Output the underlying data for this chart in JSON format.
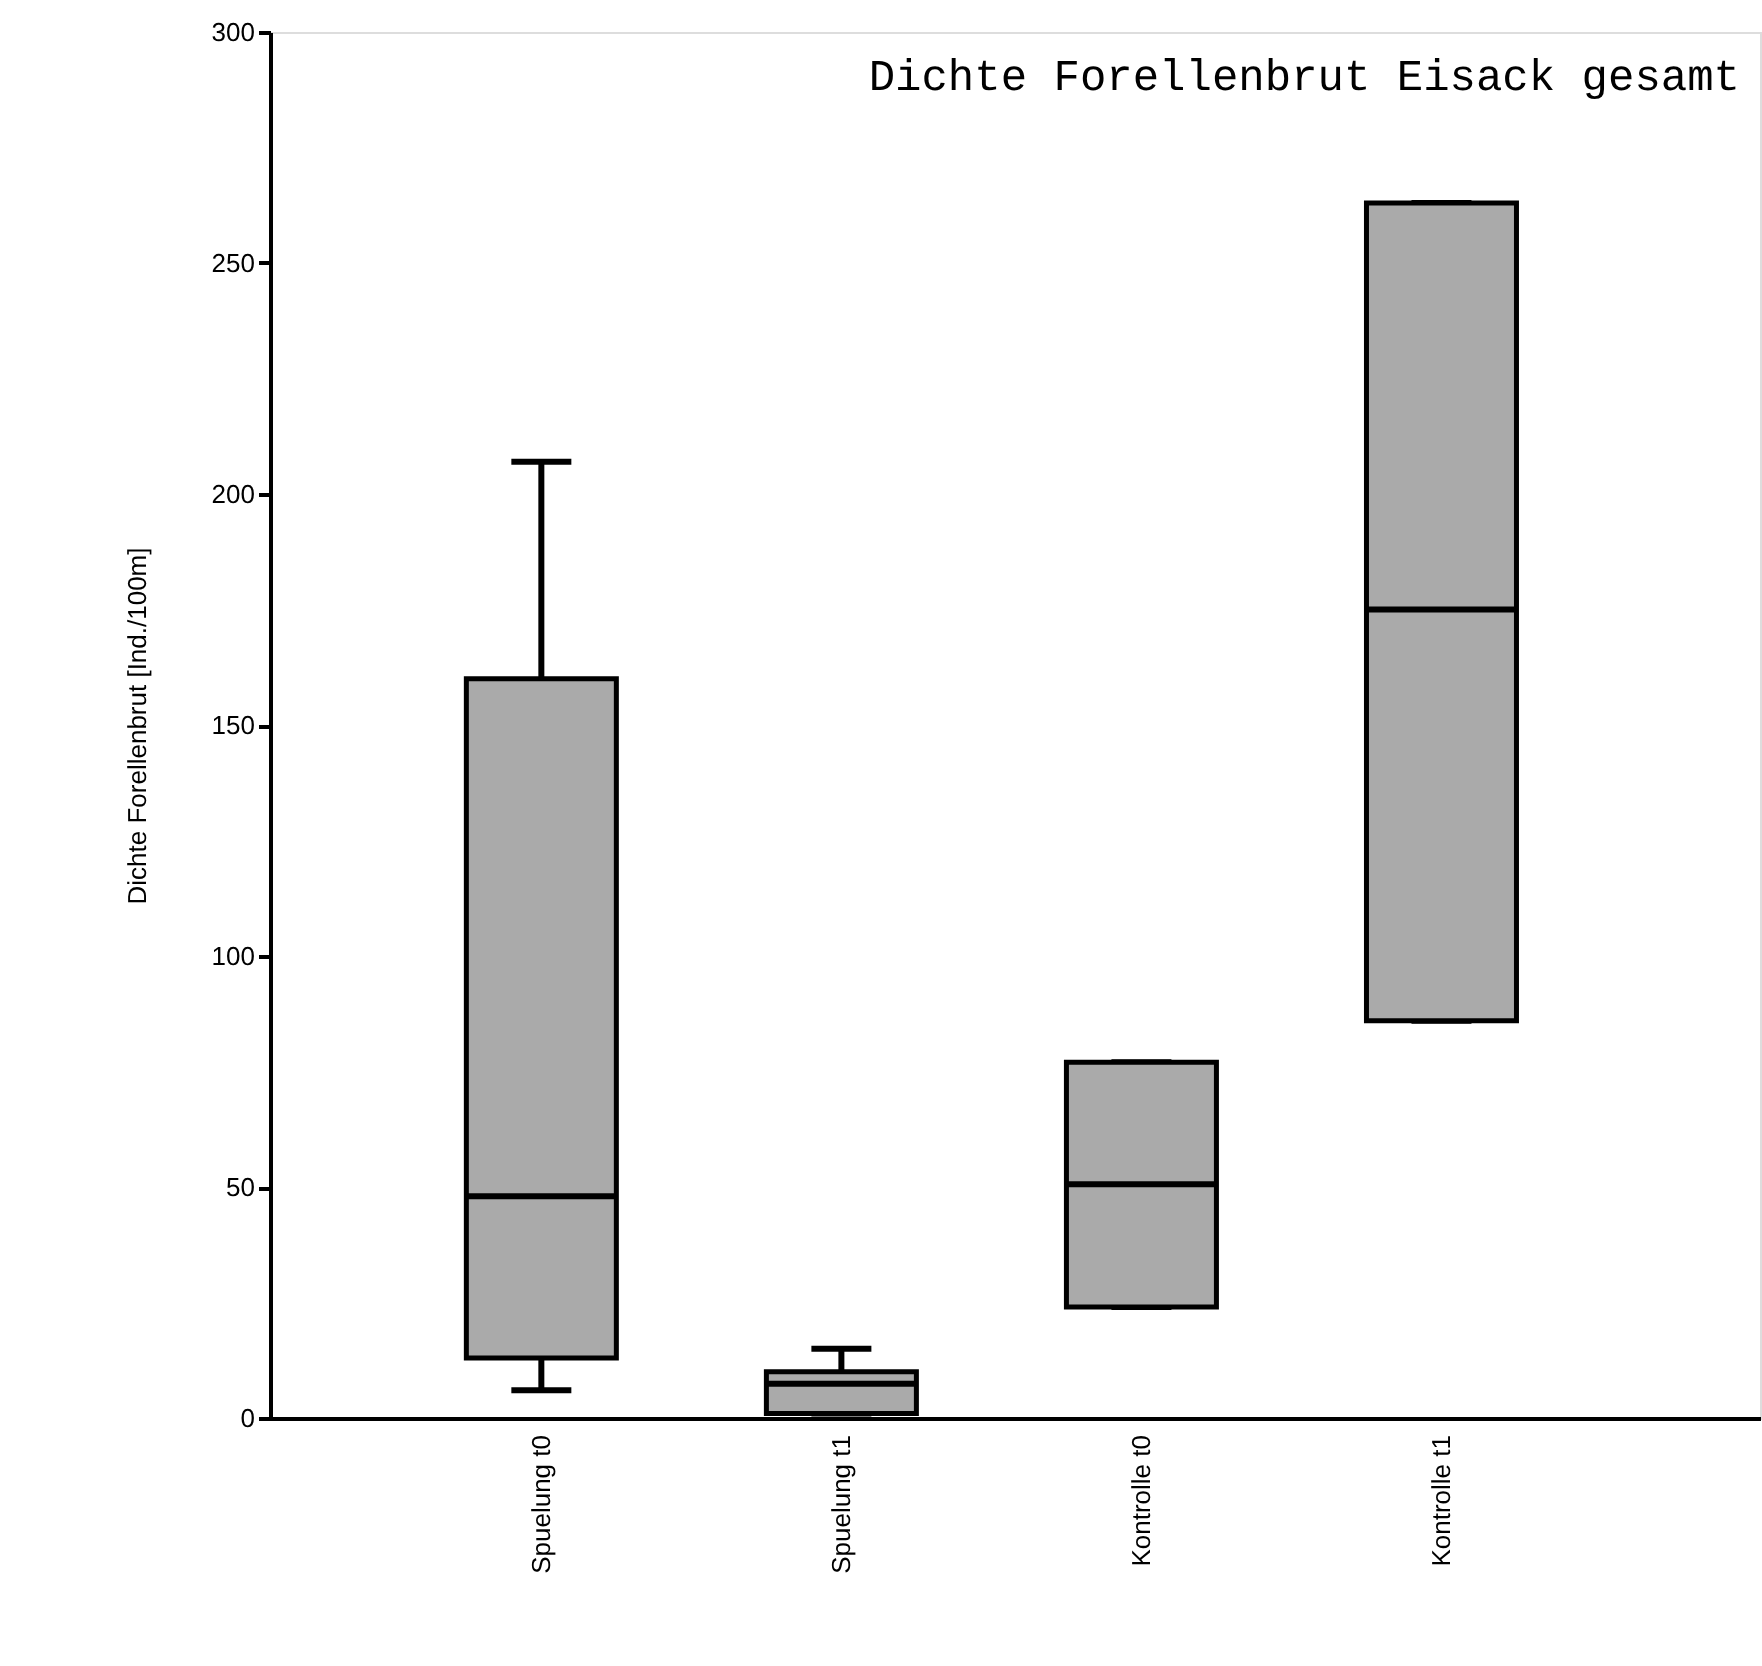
{
  "chart_data": {
    "type": "box",
    "title": "Dichte Forellenbrut Eisack gesamt",
    "ylabel": "Dichte Forellenbrut [Ind./100m]",
    "categories": [
      "Spuelung t0",
      "Spuelung t1",
      "Kontrolle t0",
      "Kontrolle t1"
    ],
    "color": "#aaaaaa",
    "boxes": [
      {
        "low": 6,
        "q1": 13,
        "median": 48,
        "q3": 160,
        "high": 207
      },
      {
        "low": 1,
        "q1": 1,
        "median": 7.4,
        "q3": 10,
        "high": 15
      },
      {
        "low": 24,
        "q1": 24,
        "median": 50.6,
        "q3": 77,
        "high": 77
      },
      {
        "low": 86,
        "q1": 86,
        "median": 175,
        "q3": 263,
        "high": 263
      }
    ],
    "ylim": [
      0,
      300
    ],
    "yticks": [
      0,
      50,
      100,
      150,
      200,
      250,
      300
    ],
    "grid": false
  }
}
